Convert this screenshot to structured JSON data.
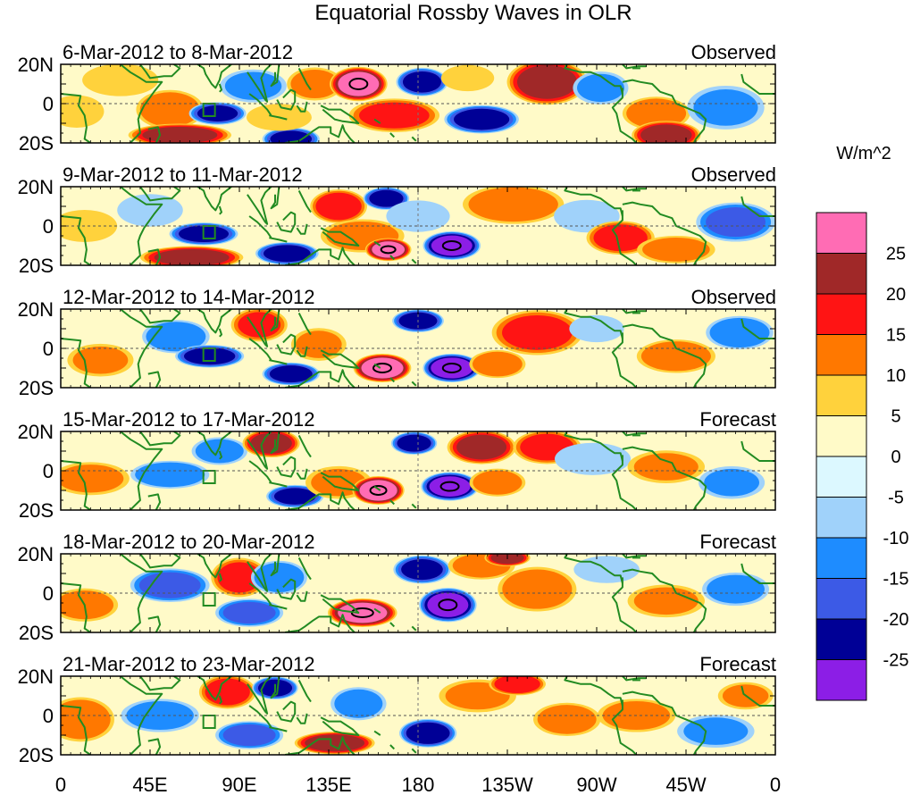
{
  "chart_data": {
    "type": "heatmap",
    "title": "Equatorial Rossby Waves in OLR",
    "units": "W/m^2",
    "x_ticks": [
      "0",
      "45E",
      "90E",
      "135E",
      "180",
      "135W",
      "90W",
      "45W",
      "0"
    ],
    "y_ticks": [
      "20N",
      "0",
      "20S"
    ],
    "colorbar": {
      "levels": [
        "25",
        "20",
        "15",
        "10",
        "5",
        "0",
        "-5",
        "-10",
        "-15",
        "-20",
        "-25"
      ],
      "colors": [
        "#ff6cb4",
        "#a02828",
        "#ff1414",
        "#ff7800",
        "#ffd23c",
        "#fffac8",
        "#dcf8ff",
        "#a0d2fa",
        "#1e8cff",
        "#3c5ae6",
        "#000096",
        "#8c1ee6"
      ]
    },
    "map_color": "#228b22",
    "panels": [
      {
        "period": "6-Mar-2012 to 8-Mar-2012",
        "kind": "Observed",
        "anomalies": [
          {
            "lon": 8,
            "lat": -4,
            "value": 9,
            "slon": 10,
            "slat": 6
          },
          {
            "lon": 30,
            "lat": 12,
            "value": 8,
            "slon": 14,
            "slat": 6
          },
          {
            "lon": 55,
            "lat": -3,
            "value": 14,
            "slon": 12,
            "slat": 7
          },
          {
            "lon": 60,
            "lat": -16,
            "value": 21,
            "slon": 18,
            "slat": 4
          },
          {
            "lon": 79,
            "lat": -5,
            "value": -20,
            "slon": 10,
            "slat": 4
          },
          {
            "lon": 97,
            "lat": 9,
            "value": -11,
            "slon": 12,
            "slat": 6
          },
          {
            "lon": 116,
            "lat": -18,
            "value": -21,
            "slon": 10,
            "slat": 4
          },
          {
            "lon": 110,
            "lat": -7,
            "value": 8,
            "slon": 12,
            "slat": 5
          },
          {
            "lon": 128,
            "lat": 10,
            "value": 12,
            "slon": 10,
            "slat": 6
          },
          {
            "lon": 150,
            "lat": 10,
            "value": 27,
            "slon": 10,
            "slat": 6
          },
          {
            "lon": 182,
            "lat": 11,
            "value": -22,
            "slon": 9,
            "slat": 5
          },
          {
            "lon": 168,
            "lat": -6,
            "value": 16,
            "slon": 16,
            "slat": 6
          },
          {
            "lon": 212,
            "lat": -8,
            "value": -22,
            "slon": 13,
            "slat": 5
          },
          {
            "lon": 205,
            "lat": 13,
            "value": 6,
            "slon": 10,
            "slat": 5
          },
          {
            "lon": 245,
            "lat": 11,
            "value": 22,
            "slon": 14,
            "slat": 8
          },
          {
            "lon": 272,
            "lat": 8,
            "value": -11,
            "slon": 10,
            "slat": 6
          },
          {
            "lon": 300,
            "lat": -5,
            "value": 14,
            "slon": 12,
            "slat": 6
          },
          {
            "lon": 305,
            "lat": -16,
            "value": 22,
            "slon": 12,
            "slat": 5
          },
          {
            "lon": 335,
            "lat": -2,
            "value": -10,
            "slon": 14,
            "slat": 8
          }
        ]
      },
      {
        "period": "9-Mar-2012 to 11-Mar-2012",
        "kind": "Observed",
        "anomalies": [
          {
            "lon": 12,
            "lat": 0,
            "value": 8,
            "slon": 12,
            "slat": 6
          },
          {
            "lon": 45,
            "lat": 8,
            "value": -9,
            "slon": 12,
            "slat": 6
          },
          {
            "lon": 72,
            "lat": -4,
            "value": -21,
            "slon": 12,
            "slat": 4
          },
          {
            "lon": 66,
            "lat": -16,
            "value": 21,
            "slon": 18,
            "slat": 4
          },
          {
            "lon": 114,
            "lat": -14,
            "value": -22,
            "slon": 11,
            "slat": 4
          },
          {
            "lon": 140,
            "lat": 10,
            "value": 18,
            "slon": 10,
            "slat": 6
          },
          {
            "lon": 164,
            "lat": 14,
            "value": -22,
            "slon": 8,
            "slat": 4
          },
          {
            "lon": 152,
            "lat": -5,
            "value": 12,
            "slon": 15,
            "slat": 6
          },
          {
            "lon": 165,
            "lat": -12,
            "value": 27,
            "slon": 8,
            "slat": 4
          },
          {
            "lon": 197,
            "lat": -10,
            "value": -27,
            "slon": 10,
            "slat": 5
          },
          {
            "lon": 180,
            "lat": 5,
            "value": -6,
            "slon": 12,
            "slat": 6
          },
          {
            "lon": 228,
            "lat": 11,
            "value": 14,
            "slon": 18,
            "slat": 7
          },
          {
            "lon": 265,
            "lat": 5,
            "value": -9,
            "slon": 12,
            "slat": 6
          },
          {
            "lon": 282,
            "lat": -6,
            "value": 17,
            "slon": 12,
            "slat": 6
          },
          {
            "lon": 310,
            "lat": -12,
            "value": 12,
            "slon": 14,
            "slat": 5
          },
          {
            "lon": 340,
            "lat": 2,
            "value": -15,
            "slon": 14,
            "slat": 7
          }
        ]
      },
      {
        "period": "12-Mar-2012 to 14-Mar-2012",
        "kind": "Observed",
        "anomalies": [
          {
            "lon": 20,
            "lat": -6,
            "value": 10,
            "slon": 12,
            "slat": 6
          },
          {
            "lon": 58,
            "lat": 6,
            "value": -14,
            "slon": 12,
            "slat": 6
          },
          {
            "lon": 75,
            "lat": -4,
            "value": -22,
            "slon": 12,
            "slat": 4
          },
          {
            "lon": 100,
            "lat": 12,
            "value": 15,
            "slon": 10,
            "slat": 6
          },
          {
            "lon": 116,
            "lat": -13,
            "value": -22,
            "slon": 10,
            "slat": 4
          },
          {
            "lon": 130,
            "lat": 2,
            "value": 10,
            "slon": 10,
            "slat": 6
          },
          {
            "lon": 162,
            "lat": -10,
            "value": 28,
            "slon": 10,
            "slat": 5
          },
          {
            "lon": 180,
            "lat": 14,
            "value": -22,
            "slon": 9,
            "slat": 4
          },
          {
            "lon": 197,
            "lat": -10,
            "value": -28,
            "slon": 10,
            "slat": 5
          },
          {
            "lon": 220,
            "lat": -8,
            "value": 14,
            "slon": 10,
            "slat": 5
          },
          {
            "lon": 240,
            "lat": 8,
            "value": 16,
            "slon": 16,
            "slat": 8
          },
          {
            "lon": 270,
            "lat": 10,
            "value": -9,
            "slon": 10,
            "slat": 5
          },
          {
            "lon": 310,
            "lat": -4,
            "value": 14,
            "slon": 14,
            "slat": 6
          },
          {
            "lon": 342,
            "lat": 8,
            "value": -14,
            "slon": 12,
            "slat": 6
          }
        ]
      },
      {
        "period": "15-Mar-2012 to 17-Mar-2012",
        "kind": "Forecast",
        "anomalies": [
          {
            "lon": 15,
            "lat": -4,
            "value": 11,
            "slon": 14,
            "slat": 6
          },
          {
            "lon": 55,
            "lat": -2,
            "value": -14,
            "slon": 14,
            "slat": 5
          },
          {
            "lon": 80,
            "lat": 10,
            "value": -12,
            "slon": 10,
            "slat": 5
          },
          {
            "lon": 106,
            "lat": 14,
            "value": 21,
            "slon": 10,
            "slat": 5
          },
          {
            "lon": 118,
            "lat": -13,
            "value": -21,
            "slon": 10,
            "slat": 4
          },
          {
            "lon": 140,
            "lat": -6,
            "value": 10,
            "slon": 12,
            "slat": 6
          },
          {
            "lon": 160,
            "lat": -10,
            "value": 28,
            "slon": 9,
            "slat": 5
          },
          {
            "lon": 178,
            "lat": 14,
            "value": -22,
            "slon": 8,
            "slat": 4
          },
          {
            "lon": 196,
            "lat": -8,
            "value": -27,
            "slon": 10,
            "slat": 5
          },
          {
            "lon": 212,
            "lat": 12,
            "value": 21,
            "slon": 12,
            "slat": 6
          },
          {
            "lon": 220,
            "lat": -6,
            "value": 13,
            "slon": 10,
            "slat": 5
          },
          {
            "lon": 245,
            "lat": 12,
            "value": 17,
            "slon": 12,
            "slat": 6
          },
          {
            "lon": 268,
            "lat": 6,
            "value": -8,
            "slon": 14,
            "slat": 6
          },
          {
            "lon": 305,
            "lat": 2,
            "value": 10,
            "slon": 14,
            "slat": 6
          },
          {
            "lon": 338,
            "lat": -6,
            "value": -10,
            "slon": 12,
            "slat": 6
          }
        ]
      },
      {
        "period": "18-Mar-2012 to 20-Mar-2012",
        "kind": "Forecast",
        "anomalies": [
          {
            "lon": 12,
            "lat": -6,
            "value": 12,
            "slon": 12,
            "slat": 6
          },
          {
            "lon": 55,
            "lat": 4,
            "value": -16,
            "slon": 14,
            "slat": 6
          },
          {
            "lon": 90,
            "lat": 8,
            "value": 16,
            "slon": 10,
            "slat": 7
          },
          {
            "lon": 110,
            "lat": 8,
            "value": -14,
            "slon": 10,
            "slat": 6
          },
          {
            "lon": 95,
            "lat": -10,
            "value": -16,
            "slon": 12,
            "slat": 5
          },
          {
            "lon": 152,
            "lat": -10,
            "value": 27,
            "slon": 12,
            "slat": 5
          },
          {
            "lon": 182,
            "lat": 12,
            "value": -21,
            "slon": 10,
            "slat": 5
          },
          {
            "lon": 195,
            "lat": -6,
            "value": -27,
            "slon": 10,
            "slat": 6
          },
          {
            "lon": 212,
            "lat": 14,
            "value": 12,
            "slon": 12,
            "slat": 5
          },
          {
            "lon": 225,
            "lat": 18,
            "value": 21,
            "slon": 8,
            "slat": 3
          },
          {
            "lon": 240,
            "lat": 2,
            "value": 14,
            "slon": 14,
            "slat": 8
          },
          {
            "lon": 275,
            "lat": 12,
            "value": -9,
            "slon": 12,
            "slat": 5
          },
          {
            "lon": 305,
            "lat": -4,
            "value": 10,
            "slon": 14,
            "slat": 6
          },
          {
            "lon": 340,
            "lat": 2,
            "value": -12,
            "slon": 12,
            "slat": 6
          }
        ]
      },
      {
        "period": "21-Mar-2012 to 23-Mar-2012",
        "kind": "Forecast",
        "anomalies": [
          {
            "lon": 10,
            "lat": -2,
            "value": 14,
            "slon": 12,
            "slat": 8
          },
          {
            "lon": 50,
            "lat": 0,
            "value": -12,
            "slon": 14,
            "slat": 6
          },
          {
            "lon": 84,
            "lat": 12,
            "value": 17,
            "slon": 10,
            "slat": 6
          },
          {
            "lon": 108,
            "lat": 14,
            "value": -22,
            "slon": 8,
            "slat": 4
          },
          {
            "lon": 95,
            "lat": -10,
            "value": -16,
            "slon": 12,
            "slat": 5
          },
          {
            "lon": 138,
            "lat": -14,
            "value": 22,
            "slon": 14,
            "slat": 4
          },
          {
            "lon": 150,
            "lat": 6,
            "value": -12,
            "slon": 10,
            "slat": 6
          },
          {
            "lon": 185,
            "lat": -9,
            "value": -23,
            "slon": 10,
            "slat": 5
          },
          {
            "lon": 210,
            "lat": 10,
            "value": 10,
            "slon": 14,
            "slat": 6
          },
          {
            "lon": 230,
            "lat": 16,
            "value": 18,
            "slon": 10,
            "slat": 4
          },
          {
            "lon": 255,
            "lat": -2,
            "value": 13,
            "slon": 12,
            "slat": 6
          },
          {
            "lon": 290,
            "lat": 0,
            "value": 12,
            "slon": 14,
            "slat": 6
          },
          {
            "lon": 330,
            "lat": -8,
            "value": -10,
            "slon": 14,
            "slat": 6
          },
          {
            "lon": 345,
            "lat": 10,
            "value": 10,
            "slon": 10,
            "slat": 5
          }
        ]
      }
    ]
  }
}
